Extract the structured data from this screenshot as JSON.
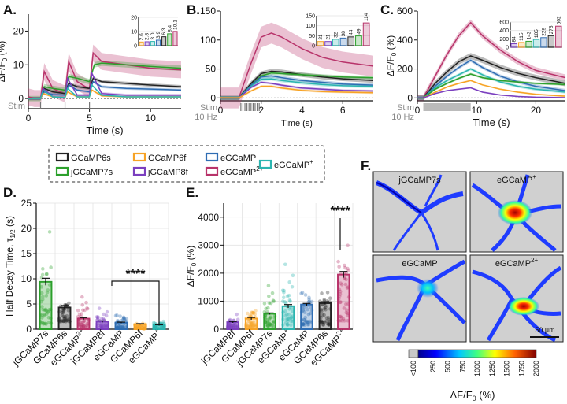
{
  "colors": {
    "GCaMP6s": "#222222",
    "jGCaMP7s": "#2ca02c",
    "GCaMP6f": "#f7a325",
    "jGCaMP8f": "#7b3fbf",
    "eGCaMP": "#2f6db3",
    "eGCaMP2+": "#b8336a",
    "eGCaMP+": "#2bb5b0"
  },
  "legend": {
    "items": [
      "GCaMP6s",
      "jGCaMP7s",
      "GCaMP6f",
      "jGCaMP8f",
      "eGCaMP",
      "eGCaMP2+",
      "eGCaMP+"
    ],
    "display": [
      {
        "text": "GCaMP6s",
        "sup": ""
      },
      {
        "text": "jGCaMP7s",
        "sup": ""
      },
      {
        "text": "GCaMP6f",
        "sup": ""
      },
      {
        "text": "jGCaMP8f",
        "sup": ""
      },
      {
        "text": "eGCaMP",
        "sup": ""
      },
      {
        "text": "eGCaMP",
        "sup": "2+"
      },
      {
        "text": "eGCaMP",
        "sup": "+"
      }
    ]
  },
  "chart_data": [
    {
      "panel": "A.",
      "type": "line",
      "xlabel": "Time (s)",
      "ylabel": "ΔF/F0 (%)",
      "xlim": [
        0,
        12.5
      ],
      "ylim": [
        -3,
        25
      ],
      "xticks": [
        0,
        5,
        10
      ],
      "yticks": [
        0,
        10,
        20
      ],
      "stim_label": "Stim",
      "stim_times": [
        1,
        3,
        5
      ],
      "series": [
        {
          "name": "eGCaMP2+",
          "x": [
            0,
            0.5,
            1,
            1.3,
            2,
            2.9,
            3,
            3.3,
            4,
            4.9,
            5,
            5.3,
            6,
            8,
            10,
            12.5
          ],
          "y": [
            0.5,
            0,
            0,
            8,
            3,
            1.5,
            1.5,
            11,
            5,
            3,
            3,
            13.5,
            11,
            10,
            9,
            8.5
          ],
          "band": 2.5
        },
        {
          "name": "jGCaMP7s",
          "x": [
            0,
            1,
            1.3,
            2,
            3,
            3.3,
            4,
            5,
            5.4,
            6,
            8,
            10,
            12.5
          ],
          "y": [
            0,
            0,
            3.5,
            3,
            2.5,
            6.5,
            6,
            5,
            10,
            10.5,
            10,
            9.5,
            9
          ],
          "band": 0.8
        },
        {
          "name": "GCaMP6s",
          "x": [
            0,
            1,
            1.3,
            2,
            3,
            3.3,
            4,
            5,
            5.3,
            6,
            8,
            10,
            12.5
          ],
          "y": [
            0,
            0,
            3,
            2,
            1.5,
            4.5,
            3.5,
            3,
            6,
            5,
            4.5,
            4,
            3.5
          ],
          "band": 0.5
        },
        {
          "name": "eGCaMP",
          "x": [
            0,
            1,
            1.3,
            2,
            3,
            3.3,
            4,
            5,
            5.3,
            6,
            8,
            10,
            12.5
          ],
          "y": [
            0,
            0,
            2,
            1.2,
            1,
            4,
            2.5,
            2,
            5,
            3.5,
            3,
            2.8,
            2.5
          ],
          "band": 0.4
        },
        {
          "name": "jGCaMP8f",
          "x": [
            0,
            1,
            1.2,
            2,
            3,
            3.2,
            4,
            5,
            5.2,
            6,
            8,
            10,
            12.5
          ],
          "y": [
            0,
            0,
            3,
            0.5,
            0.3,
            6,
            1,
            1,
            7.5,
            1.5,
            1,
            1,
            1
          ],
          "band": 0.4
        },
        {
          "name": "GCaMP6f",
          "x": [
            0,
            1,
            1.2,
            2,
            3,
            3.2,
            4,
            5,
            5.2,
            6,
            8,
            10,
            12.5
          ],
          "y": [
            0,
            0,
            1.5,
            0.5,
            0.3,
            2,
            0.5,
            0.5,
            2.5,
            0.8,
            0.5,
            0.5,
            0.5
          ],
          "band": 0.3
        },
        {
          "name": "eGCaMP+",
          "x": [
            0,
            1,
            1.2,
            2,
            3,
            3.2,
            4,
            5,
            5.2,
            6,
            8,
            10,
            12.5
          ],
          "y": [
            0,
            0,
            2.5,
            0.5,
            0.3,
            3,
            0.5,
            0.5,
            4,
            1,
            0.5,
            0.5,
            0.5
          ],
          "band": 0.3
        }
      ],
      "inset": {
        "ylim": [
          0,
          20
        ],
        "yticks": [
          0,
          10,
          20
        ],
        "labels": [
          "2.6",
          "2.8",
          "3.0",
          "3.9",
          "6.3",
          "8.4",
          "10.1"
        ],
        "values": [
          2.6,
          2.8,
          3.0,
          3.9,
          6.3,
          8.4,
          10.1
        ],
        "order": [
          "GCaMP6f",
          "jGCaMP8f",
          "eGCaMP+",
          "eGCaMP",
          "GCaMP6s",
          "jGCaMP7s",
          "eGCaMP2+"
        ]
      }
    },
    {
      "panel": "B.",
      "type": "line",
      "xlabel": "Time (s)",
      "ylabel": "",
      "xlim": [
        0,
        7.5
      ],
      "ylim": [
        -5,
        150
      ],
      "xticks": [
        0,
        2,
        4,
        6
      ],
      "yticks": [
        0,
        50,
        100,
        150
      ],
      "stim_label": "Stim",
      "stim_rate": "10 Hz",
      "stim_times": [
        1.0,
        1.1,
        1.2,
        1.3,
        1.4,
        1.5,
        1.6,
        1.7,
        1.8,
        1.9
      ],
      "series": [
        {
          "name": "eGCaMP2+",
          "x": [
            0,
            0.9,
            1.5,
            2,
            2.5,
            3,
            4,
            5,
            6,
            7.5
          ],
          "y": [
            0,
            0,
            60,
            105,
            112,
            105,
            85,
            70,
            62,
            55
          ],
          "band": 18
        },
        {
          "name": "GCaMP6s",
          "x": [
            0,
            0.9,
            1.5,
            2,
            2.5,
            3,
            4,
            5,
            6,
            7.5
          ],
          "y": [
            0,
            0,
            25,
            42,
            46,
            45,
            40,
            36,
            33,
            30
          ],
          "band": 4
        },
        {
          "name": "jGCaMP7s",
          "x": [
            0,
            0.9,
            1.5,
            2,
            2.5,
            3,
            4,
            5,
            6,
            7.5
          ],
          "y": [
            0,
            0,
            22,
            38,
            43,
            42,
            40,
            38,
            36,
            35
          ],
          "band": 3
        },
        {
          "name": "eGCaMP",
          "x": [
            0,
            0.9,
            1.5,
            2,
            2.5,
            3,
            4,
            5,
            6,
            7.5
          ],
          "y": [
            0,
            0,
            22,
            36,
            38,
            35,
            30,
            27,
            24,
            22
          ],
          "band": 3
        },
        {
          "name": "eGCaMP+",
          "x": [
            0,
            0.9,
            1.5,
            2,
            2.5,
            3,
            4,
            5,
            6,
            7.5
          ],
          "y": [
            0,
            0,
            20,
            32,
            33,
            30,
            26,
            23,
            21,
            20
          ],
          "band": 3
        },
        {
          "name": "jGCaMP8f",
          "x": [
            0,
            0.9,
            1.5,
            2,
            2.5,
            3,
            4,
            5,
            6,
            7.5
          ],
          "y": [
            0,
            0,
            18,
            27,
            25,
            22,
            17,
            15,
            13,
            12
          ],
          "band": 2
        },
        {
          "name": "GCaMP6f",
          "x": [
            0,
            0.9,
            1.5,
            2,
            2.5,
            3,
            4,
            5,
            6,
            7.5
          ],
          "y": [
            0,
            0,
            12,
            20,
            20,
            17,
            13,
            11,
            10,
            9
          ],
          "band": 2
        }
      ],
      "inset": {
        "ylim": [
          0,
          150
        ],
        "yticks": [
          0,
          50,
          100,
          150
        ],
        "labels": [
          "21",
          "21",
          "32",
          "38",
          "44",
          "49",
          "114"
        ],
        "values": [
          21,
          21,
          32,
          38,
          44,
          49,
          114
        ],
        "order": [
          "GCaMP6f",
          "jGCaMP8f",
          "eGCaMP+",
          "eGCaMP",
          "GCaMP6s",
          "jGCaMP7s",
          "eGCaMP2+"
        ]
      }
    },
    {
      "panel": "C.",
      "type": "line",
      "xlabel": "Time (s)",
      "ylabel": "ΔF/F0 (%)",
      "xlim": [
        0,
        25
      ],
      "ylim": [
        -20,
        600
      ],
      "xticks": [
        0,
        10,
        20
      ],
      "yticks": [
        0,
        200,
        400,
        600
      ],
      "stim_label": "Stim",
      "stim_rate": "10 Hz",
      "stim_start": 1,
      "stim_end": 9,
      "series": [
        {
          "name": "eGCaMP2+",
          "x": [
            0,
            1,
            3,
            5,
            7,
            9,
            11,
            14,
            17,
            20,
            25
          ],
          "y": [
            0,
            0,
            150,
            300,
            430,
            520,
            430,
            330,
            250,
            190,
            140
          ],
          "band": 22
        },
        {
          "name": "GCaMP6s",
          "x": [
            0,
            1,
            3,
            5,
            7,
            9,
            11,
            14,
            17,
            20,
            25
          ],
          "y": [
            0,
            0,
            100,
            180,
            250,
            290,
            260,
            210,
            170,
            140,
            100
          ],
          "band": 20
        },
        {
          "name": "eGCaMP",
          "x": [
            0,
            1,
            3,
            5,
            7,
            9,
            11,
            14,
            17,
            20,
            25
          ],
          "y": [
            0,
            0,
            80,
            150,
            210,
            260,
            210,
            150,
            110,
            80,
            50
          ],
          "band": 12
        },
        {
          "name": "eGCaMP+",
          "x": [
            0,
            1,
            3,
            5,
            7,
            9,
            11,
            14,
            17,
            20,
            25
          ],
          "y": [
            0,
            0,
            70,
            120,
            160,
            200,
            160,
            110,
            80,
            60,
            40
          ],
          "band": 10
        },
        {
          "name": "jGCaMP7s",
          "x": [
            0,
            1,
            3,
            5,
            7,
            9,
            11,
            14,
            17,
            20,
            25
          ],
          "y": [
            0,
            0,
            60,
            100,
            135,
            165,
            140,
            120,
            110,
            100,
            92
          ],
          "band": 8
        },
        {
          "name": "GCaMP6f",
          "x": [
            0,
            1,
            3,
            5,
            7,
            9,
            11,
            14,
            17,
            20,
            25
          ],
          "y": [
            0,
            0,
            40,
            75,
            100,
            120,
            90,
            60,
            40,
            25,
            12
          ],
          "band": 6
        },
        {
          "name": "jGCaMP8f",
          "x": [
            0,
            1,
            3,
            5,
            7,
            9,
            11,
            14,
            17,
            20,
            25
          ],
          "y": [
            0,
            0,
            30,
            50,
            60,
            70,
            40,
            20,
            10,
            5,
            2
          ],
          "band": 5
        }
      ],
      "inset": {
        "ylim": [
          0,
          600
        ],
        "yticks": [
          0,
          200,
          400,
          600
        ],
        "labels": [
          "84",
          "115",
          "142",
          "185",
          "229",
          "275",
          "502"
        ],
        "values": [
          84,
          115,
          142,
          185,
          229,
          275,
          502
        ],
        "order": [
          "jGCaMP8f",
          "GCaMP6f",
          "jGCaMP7s",
          "eGCaMP+",
          "eGCaMP",
          "GCaMP6s",
          "eGCaMP2+"
        ]
      }
    },
    {
      "panel": "D.",
      "type": "bar",
      "ylabel": "Half Decay Time, τ1/2 (s)",
      "ylim": [
        0,
        25
      ],
      "yticks": [
        0,
        5,
        10,
        15,
        20,
        25
      ],
      "categories": [
        "jGCaMP7s",
        "GCaMP6s",
        "eGCaMP2+",
        "jGCaMP8f",
        "eGCaMP",
        "GCaMP6f",
        "eGCaMP+"
      ],
      "category_display": [
        {
          "text": "jGCaMP7s",
          "sup": ""
        },
        {
          "text": "GCaMP6s",
          "sup": ""
        },
        {
          "text": "eGCaMP",
          "sup": "2+"
        },
        {
          "text": "jGCaMP8f",
          "sup": ""
        },
        {
          "text": "eGCaMP",
          "sup": ""
        },
        {
          "text": "GCaMP6f",
          "sup": ""
        },
        {
          "text": "eGCaMP",
          "sup": "+"
        }
      ],
      "values": [
        9.4,
        4.3,
        2.1,
        1.5,
        1.3,
        1.0,
        0.8
      ],
      "errors": [
        0.7,
        0.4,
        0.2,
        0.15,
        0.1,
        0.1,
        0.08
      ],
      "point_spread": [
        [
          1,
          22
        ],
        [
          1.5,
          8
        ],
        [
          0.3,
          7
        ],
        [
          0.2,
          5
        ],
        [
          0.2,
          4.5
        ],
        [
          0.1,
          2
        ],
        [
          0.2,
          2
        ]
      ],
      "significance": "****"
    },
    {
      "panel": "E.",
      "type": "bar",
      "ylabel": "ΔF/F0 (%)",
      "ylim": [
        0,
        4500
      ],
      "yticks": [
        0,
        1000,
        2000,
        3000,
        4000
      ],
      "categories": [
        "jGCaMP8f",
        "GCaMP6f",
        "jGCaMP7s",
        "eGCaMP+",
        "eGCaMP",
        "GCaMP6s",
        "eGCaMP2+"
      ],
      "category_display": [
        {
          "text": "jGCaMP8f",
          "sup": ""
        },
        {
          "text": "GCaMP6f",
          "sup": ""
        },
        {
          "text": "jGCaMP7s",
          "sup": ""
        },
        {
          "text": "eGCaMP",
          "sup": "+"
        },
        {
          "text": "eGCaMP",
          "sup": ""
        },
        {
          "text": "GCaMP6s",
          "sup": ""
        },
        {
          "text": "eGCaMP",
          "sup": "2+"
        }
      ],
      "values": [
        250,
        380,
        550,
        820,
        880,
        930,
        1950
      ],
      "errors": [
        25,
        40,
        30,
        60,
        40,
        50,
        110
      ],
      "point_spread": [
        [
          50,
          600
        ],
        [
          80,
          1100
        ],
        [
          100,
          1700
        ],
        [
          150,
          2800
        ],
        [
          150,
          2100
        ],
        [
          150,
          2300
        ],
        [
          300,
          3900
        ]
      ],
      "significance": "****"
    },
    {
      "panel": "F.",
      "type": "heatmap",
      "images": [
        {
          "label": "jGCaMP7s",
          "sup": ""
        },
        {
          "label": "eGCaMP",
          "sup": "+"
        },
        {
          "label": "eGCaMP",
          "sup": ""
        },
        {
          "label": "eGCaMP",
          "sup": "2+"
        }
      ],
      "scalebar": "50 μm",
      "colorbar": {
        "ticks": [
          "<100",
          "250",
          "500",
          "750",
          "1000",
          "1250",
          "1500",
          "1750",
          "2000"
        ],
        "label": "ΔF/F0 (%)"
      }
    }
  ]
}
